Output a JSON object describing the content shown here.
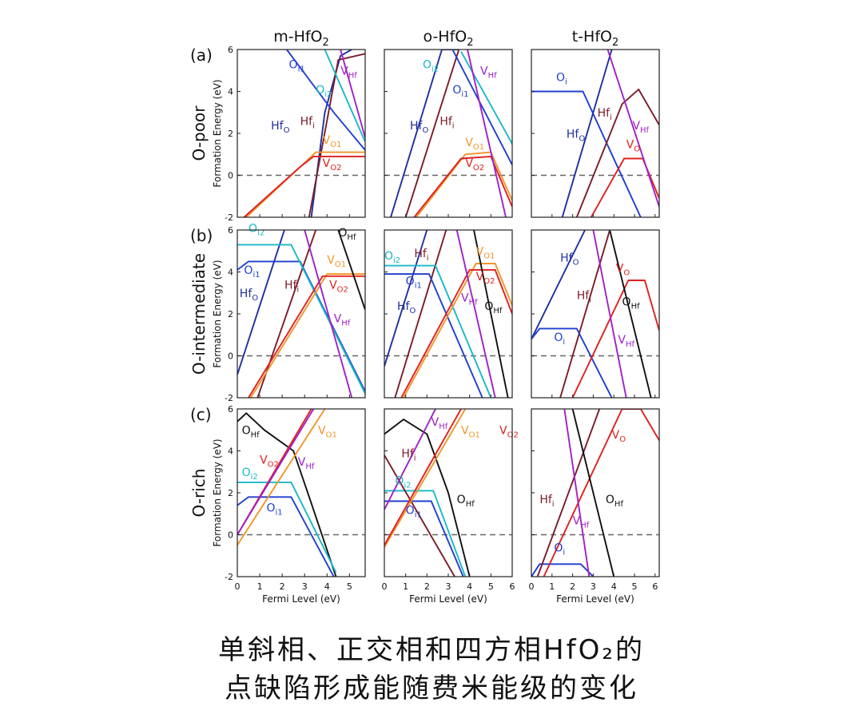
{
  "figure": {
    "caption_line1": "单斜相、正交相和四方相HfO₂的",
    "caption_line2": "点缺陷形成能随费米能级的变化"
  },
  "rows": [
    {
      "tag": "(a)",
      "condition": "O-poor"
    },
    {
      "tag": "(b)",
      "condition": "O-intermediate"
    },
    {
      "tag": "(c)",
      "condition": "O-rich"
    }
  ],
  "y_axis": {
    "label": "Formation Energy (eV)",
    "ylim": [
      -2,
      6
    ],
    "ticks": [
      "-2",
      "0",
      "2",
      "4",
      "6"
    ]
  },
  "columns": [
    {
      "name": "m-HfO",
      "sub": "2",
      "xlim": [
        0,
        5.7
      ],
      "ticks": [
        "0",
        "1",
        "2",
        "3",
        "4",
        "5"
      ]
    },
    {
      "name": "o-HfO",
      "sub": "2",
      "xlim": [
        0,
        6
      ],
      "ticks": [
        "0",
        "1",
        "2",
        "3",
        "4",
        "5",
        "6"
      ]
    },
    {
      "name": "t-HfO",
      "sub": "2",
      "xlim": [
        0,
        6.2
      ],
      "ticks": [
        "0",
        "1",
        "2",
        "3",
        "4",
        "5",
        "6"
      ]
    }
  ],
  "x_axis": {
    "label": "Fermi Level (eV)"
  },
  "colors": {
    "Hf_O": "#1f2f9e",
    "Hf_i": "#7a1c2a",
    "O_i": "#1f3fcf",
    "O_i1": "#1f3fcf",
    "O_i2": "#1ab8c8",
    "V_O": "#e02020",
    "V_O1": "#f0962a",
    "V_O2": "#e02020",
    "V_Hf": "#a020c8",
    "O_Hf": "#111111",
    "zero": "#666666"
  },
  "chart_data": [
    {
      "type": "line",
      "panel": "a",
      "phase": "m-HfO2",
      "condition": "O-poor",
      "series": [
        {
          "name": "HfO",
          "sub": "O",
          "key": "Hf_O",
          "x": [
            3.3,
            3.9,
            4.6,
            5.1
          ],
          "y": [
            -2,
            3.0,
            5.7,
            6.0
          ]
        },
        {
          "name": "Hfi",
          "sub": "i",
          "key": "Hf_i",
          "x": [
            3.2,
            4.5,
            5.7
          ],
          "y": [
            -2,
            5.5,
            5.8
          ]
        },
        {
          "name": "Oi1",
          "sub": "i1",
          "key": "O_i1",
          "x": [
            2.2,
            4.3,
            5.7
          ],
          "y": [
            6.0,
            3.0,
            1.2
          ]
        },
        {
          "name": "Oi2",
          "sub": "i2",
          "key": "O_i2",
          "x": [
            3.9,
            5.7
          ],
          "y": [
            6.0,
            1.6
          ]
        },
        {
          "name": "VO1",
          "sub": "O1",
          "key": "V_O1",
          "x": [
            0.4,
            2.9,
            3.5,
            5.7
          ],
          "y": [
            -2,
            0.5,
            1.1,
            1.1
          ]
        },
        {
          "name": "VO2",
          "sub": "O2",
          "key": "V_O2",
          "x": [
            0.3,
            2.8,
            3.4,
            5.7
          ],
          "y": [
            -2,
            0.4,
            0.9,
            0.9
          ]
        },
        {
          "name": "VHf",
          "sub": "Hf",
          "key": "V_Hf",
          "x": [
            4.6,
            5.7
          ],
          "y": [
            6.0,
            1.8
          ]
        }
      ]
    },
    {
      "type": "line",
      "panel": "a",
      "phase": "o-HfO2",
      "condition": "O-poor",
      "series": [
        {
          "name": "HfO",
          "sub": "O",
          "key": "Hf_O",
          "x": [
            0.3,
            2.7,
            3.5
          ],
          "y": [
            -2,
            6.0,
            6.0
          ]
        },
        {
          "name": "Hfi",
          "sub": "i",
          "key": "Hf_i",
          "x": [
            1.0,
            3.5
          ],
          "y": [
            -2,
            6.0
          ]
        },
        {
          "name": "Oi1",
          "sub": "i1",
          "key": "O_i1",
          "x": [
            3.2,
            6.0
          ],
          "y": [
            6.0,
            0.5
          ]
        },
        {
          "name": "Oi2",
          "sub": "i2",
          "key": "O_i2",
          "x": [
            3.6,
            6.0
          ],
          "y": [
            5.9,
            1.5
          ]
        },
        {
          "name": "VO1",
          "sub": "O1",
          "key": "V_O1",
          "x": [
            1.5,
            3.8,
            5.0,
            6.0
          ],
          "y": [
            -2,
            1.0,
            1.1,
            -1.2
          ]
        },
        {
          "name": "VO2",
          "sub": "O2",
          "key": "V_O2",
          "x": [
            1.4,
            3.6,
            5.0,
            6.0
          ],
          "y": [
            -2,
            0.8,
            0.9,
            -1.5
          ]
        },
        {
          "name": "VHf",
          "sub": "Hf",
          "key": "V_Hf",
          "x": [
            3.9,
            5.7
          ],
          "y": [
            6.0,
            -2
          ]
        }
      ]
    },
    {
      "type": "line",
      "panel": "a",
      "phase": "t-HfO2",
      "condition": "O-poor",
      "series": [
        {
          "name": "Oi",
          "sub": "i",
          "key": "O_i",
          "x": [
            0.0,
            2.5,
            5.3
          ],
          "y": [
            4.0,
            4.0,
            -2
          ]
        },
        {
          "name": "HfO",
          "sub": "O",
          "key": "Hf_O",
          "x": [
            1.5,
            3.9
          ],
          "y": [
            -2,
            6.0
          ]
        },
        {
          "name": "Hfi",
          "sub": "i",
          "key": "Hf_i",
          "x": [
            2.2,
            4.4,
            5.2,
            6.2
          ],
          "y": [
            -2,
            3.4,
            4.1,
            2.4
          ]
        },
        {
          "name": "VO",
          "sub": "O",
          "key": "V_O",
          "x": [
            2.9,
            4.5,
            5.4,
            6.2
          ],
          "y": [
            -2,
            0.8,
            0.8,
            -1.1
          ]
        },
        {
          "name": "VHf",
          "sub": "Hf",
          "key": "V_Hf",
          "x": [
            3.7,
            6.2
          ],
          "y": [
            6.0,
            -1.5
          ]
        }
      ]
    },
    {
      "type": "line",
      "panel": "b",
      "phase": "m-HfO2",
      "condition": "O-intermediate",
      "series": [
        {
          "name": "HfO",
          "sub": "O",
          "key": "Hf_O",
          "x": [
            0.0,
            2.1
          ],
          "y": [
            -0.9,
            6.0
          ]
        },
        {
          "name": "Hfi",
          "sub": "i",
          "key": "Hf_i",
          "x": [
            0.9,
            3.5
          ],
          "y": [
            -2,
            6.0
          ]
        },
        {
          "name": "Oi1",
          "sub": "i1",
          "key": "O_i1",
          "x": [
            0.0,
            0.5,
            2.8,
            5.7
          ],
          "y": [
            4.1,
            4.5,
            4.5,
            -1.7
          ]
        },
        {
          "name": "Oi2",
          "sub": "i2",
          "key": "O_i2",
          "x": [
            0.0,
            2.4,
            5.7
          ],
          "y": [
            5.3,
            5.3,
            -1.8
          ]
        },
        {
          "name": "VO1",
          "sub": "O1",
          "key": "V_O1",
          "x": [
            0.6,
            4.0,
            5.7
          ],
          "y": [
            -2,
            3.9,
            3.9
          ]
        },
        {
          "name": "VO2",
          "sub": "O2",
          "key": "V_O2",
          "x": [
            0.5,
            3.8,
            5.7
          ],
          "y": [
            -2,
            3.8,
            3.8
          ]
        },
        {
          "name": "VHf",
          "sub": "Hf",
          "key": "V_Hf",
          "x": [
            3.0,
            5.1
          ],
          "y": [
            6.0,
            -2
          ]
        },
        {
          "name": "OHf",
          "sub": "Hf",
          "key": "O_Hf",
          "x": [
            4.5,
            5.7
          ],
          "y": [
            6.0,
            2.2
          ]
        }
      ]
    },
    {
      "type": "line",
      "panel": "b",
      "phase": "o-HfO2",
      "condition": "O-intermediate",
      "series": [
        {
          "name": "HfO",
          "sub": "O",
          "key": "Hf_O",
          "x": [
            0.0,
            2.0
          ],
          "y": [
            -0.5,
            6.0
          ]
        },
        {
          "name": "Hfi",
          "sub": "i",
          "key": "Hf_i",
          "x": [
            0.5,
            2.9
          ],
          "y": [
            -2,
            6.0
          ]
        },
        {
          "name": "Oi1",
          "sub": "i1",
          "key": "O_i1",
          "x": [
            0.0,
            2.1,
            4.6
          ],
          "y": [
            3.9,
            3.9,
            -2
          ]
        },
        {
          "name": "Oi2",
          "sub": "i2",
          "key": "O_i2",
          "x": [
            0.0,
            2.4,
            5.0
          ],
          "y": [
            4.3,
            4.3,
            -2
          ]
        },
        {
          "name": "VO1",
          "sub": "O1",
          "key": "V_O1",
          "x": [
            0.9,
            4.3,
            5.2,
            6.0
          ],
          "y": [
            -2,
            4.4,
            4.4,
            2.4
          ]
        },
        {
          "name": "VO2",
          "sub": "O2",
          "key": "V_O2",
          "x": [
            0.8,
            4.0,
            5.2,
            6.0
          ],
          "y": [
            -2,
            4.1,
            4.1,
            2.0
          ]
        },
        {
          "name": "VHf",
          "sub": "Hf",
          "key": "V_Hf",
          "x": [
            3.4,
            5.2
          ],
          "y": [
            6.0,
            -2
          ]
        },
        {
          "name": "OHf",
          "sub": "Hf",
          "key": "O_Hf",
          "x": [
            4.2,
            5.8
          ],
          "y": [
            6.0,
            -2
          ]
        }
      ]
    },
    {
      "type": "line",
      "panel": "b",
      "phase": "t-HfO2",
      "condition": "O-intermediate",
      "series": [
        {
          "name": "HfO",
          "sub": "O",
          "key": "Hf_O",
          "x": [
            0.0,
            2.6
          ],
          "y": [
            0.8,
            6.0
          ]
        },
        {
          "name": "Hfi",
          "sub": "i",
          "key": "Hf_i",
          "x": [
            1.4,
            3.8
          ],
          "y": [
            -2,
            6.0
          ]
        },
        {
          "name": "Oi",
          "sub": "i",
          "key": "O_i",
          "x": [
            0.0,
            0.4,
            2.2,
            3.9
          ],
          "y": [
            0.8,
            1.3,
            1.3,
            -2
          ]
        },
        {
          "name": "VO",
          "sub": "O",
          "key": "V_O",
          "x": [
            2.0,
            4.7,
            5.5,
            6.2
          ],
          "y": [
            -2,
            3.6,
            3.6,
            1.2
          ]
        },
        {
          "name": "VHf",
          "sub": "Hf",
          "key": "V_Hf",
          "x": [
            3.0,
            4.6
          ],
          "y": [
            6.0,
            -2
          ]
        },
        {
          "name": "OHf",
          "sub": "Hf",
          "key": "O_Hf",
          "x": [
            3.8,
            5.8
          ],
          "y": [
            6.0,
            -2
          ]
        }
      ]
    },
    {
      "type": "line",
      "panel": "c",
      "phase": "m-HfO2",
      "condition": "O-rich",
      "series": [
        {
          "name": "OHf",
          "sub": "Hf",
          "key": "O_Hf",
          "x": [
            0.0,
            0.4,
            1.2,
            2.5,
            3.3,
            4.4
          ],
          "y": [
            5.4,
            5.8,
            5.0,
            4.0,
            1.5,
            -2
          ]
        },
        {
          "name": "Oi1",
          "sub": "i1",
          "key": "O_i1",
          "x": [
            0.0,
            0.5,
            2.4,
            4.3
          ],
          "y": [
            1.4,
            1.8,
            1.8,
            -2
          ]
        },
        {
          "name": "Oi2",
          "sub": "i2",
          "key": "O_i2",
          "x": [
            0.0,
            2.4,
            4.4
          ],
          "y": [
            2.5,
            2.5,
            -1.8
          ]
        },
        {
          "name": "VO1",
          "sub": "O1",
          "key": "V_O1",
          "x": [
            0.0,
            3.9
          ],
          "y": [
            -0.5,
            6.0
          ]
        },
        {
          "name": "VO2",
          "sub": "O2",
          "key": "V_O2",
          "x": [
            0.0,
            3.3
          ],
          "y": [
            0.0,
            6.0
          ]
        },
        {
          "name": "VHf",
          "sub": "Hf",
          "key": "V_Hf",
          "x": [
            0.0,
            3.4
          ],
          "y": [
            0.0,
            6.0
          ]
        }
      ]
    },
    {
      "type": "line",
      "panel": "c",
      "phase": "o-HfO2",
      "condition": "O-rich",
      "series": [
        {
          "name": "OHf",
          "sub": "Hf",
          "key": "O_Hf",
          "x": [
            0.0,
            0.9,
            2.0,
            3.0,
            4.0
          ],
          "y": [
            4.8,
            5.5,
            4.8,
            2.0,
            -2
          ]
        },
        {
          "name": "Oi1",
          "sub": "i1",
          "key": "O_i1",
          "x": [
            0.0,
            2.2,
            3.7
          ],
          "y": [
            1.6,
            1.6,
            -2
          ]
        },
        {
          "name": "Oi2",
          "sub": "i2",
          "key": "O_i2",
          "x": [
            0.0,
            2.3,
            3.8
          ],
          "y": [
            2.1,
            2.1,
            -2
          ]
        },
        {
          "name": "Hfi",
          "sub": "i",
          "key": "Hf_i",
          "x": [
            0.0,
            3.3
          ],
          "y": [
            3.8,
            -2
          ]
        },
        {
          "name": "VO1",
          "sub": "O1",
          "key": "V_O1",
          "x": [
            0.0,
            3.8
          ],
          "y": [
            -0.6,
            6.0
          ]
        },
        {
          "name": "VO2",
          "sub": "O2",
          "key": "V_O2",
          "x": [
            0.0,
            3.6
          ],
          "y": [
            -0.5,
            6.0
          ]
        },
        {
          "name": "VHf",
          "sub": "Hf",
          "key": "V_Hf",
          "x": [
            0.0,
            2.4
          ],
          "y": [
            1.2,
            6.0
          ]
        }
      ]
    },
    {
      "type": "line",
      "panel": "c",
      "phase": "t-HfO2",
      "condition": "O-rich",
      "series": [
        {
          "name": "Oi",
          "sub": "i",
          "key": "O_i",
          "x": [
            0.0,
            0.4,
            2.4,
            3.0
          ],
          "y": [
            -2,
            -1.4,
            -1.4,
            -2
          ]
        },
        {
          "name": "Hfi",
          "sub": "i",
          "key": "Hf_i",
          "x": [
            0.3,
            3.3
          ],
          "y": [
            -2,
            6.0
          ]
        },
        {
          "name": "VO",
          "sub": "O",
          "key": "V_O",
          "x": [
            0.6,
            4.4,
            5.3,
            6.2
          ],
          "y": [
            -2,
            6.0,
            6.0,
            4.5
          ]
        },
        {
          "name": "VHf",
          "sub": "Hf",
          "key": "V_Hf",
          "x": [
            1.6,
            2.8
          ],
          "y": [
            6.0,
            -2
          ]
        },
        {
          "name": "OHf",
          "sub": "Hf",
          "key": "O_Hf",
          "x": [
            2.0,
            4.0
          ],
          "y": [
            6.0,
            -2
          ]
        }
      ]
    }
  ]
}
